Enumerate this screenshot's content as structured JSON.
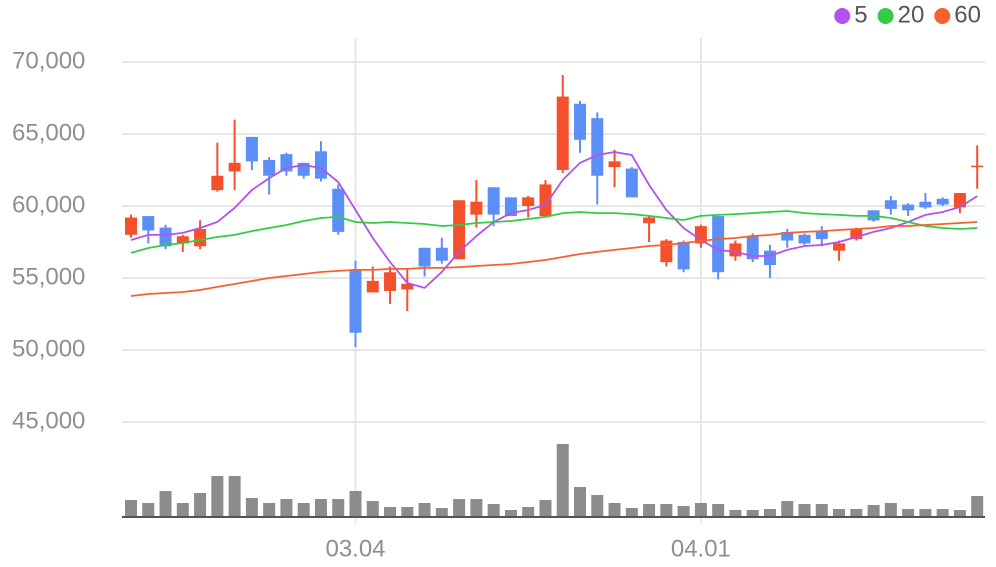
{
  "chart_data": {
    "type": "candlestick",
    "categories": [
      null,
      null,
      null,
      null,
      null,
      null,
      null,
      null,
      null,
      null,
      null,
      null,
      null,
      "03.04",
      null,
      null,
      null,
      null,
      null,
      null,
      null,
      null,
      null,
      null,
      null,
      null,
      null,
      null,
      null,
      null,
      null,
      null,
      null,
      "04.01",
      null,
      null,
      null,
      null,
      null,
      null,
      null,
      null,
      null,
      null,
      null,
      null,
      null,
      null,
      null,
      null
    ],
    "open": [
      58000,
      59300,
      58500,
      57400,
      57200,
      61100,
      62400,
      64800,
      63200,
      63600,
      63000,
      63800,
      61200,
      55600,
      54000,
      54100,
      54200,
      57100,
      57100,
      56300,
      59400,
      61300,
      60600,
      60000,
      59300,
      62500,
      67100,
      66100,
      62700,
      62600,
      58800,
      56100,
      57500,
      57400,
      59300,
      56500,
      57900,
      56900,
      58200,
      58000,
      58300,
      56900,
      57700,
      59700,
      60400,
      60100,
      60300,
      60500,
      59900,
      62700
    ],
    "high": [
      59400,
      59300,
      58700,
      58000,
      59000,
      64400,
      66000,
      64800,
      63400,
      63700,
      63000,
      64500,
      61500,
      56200,
      55800,
      55800,
      55700,
      57100,
      57800,
      60400,
      61800,
      61300,
      60600,
      60700,
      61800,
      69100,
      67300,
      66500,
      63900,
      62700,
      59300,
      57700,
      57600,
      58700,
      59300,
      57600,
      58100,
      57300,
      58400,
      58100,
      58600,
      57600,
      58500,
      59700,
      60700,
      60200,
      60900,
      60600,
      60900,
      64200
    ],
    "low": [
      57800,
      57400,
      57000,
      56800,
      57000,
      61000,
      61100,
      62500,
      60800,
      62100,
      61900,
      61700,
      58000,
      50200,
      54000,
      53200,
      52700,
      55100,
      56000,
      56300,
      58500,
      58600,
      59300,
      59200,
      59200,
      62300,
      63700,
      60100,
      61300,
      60600,
      57500,
      55800,
      55400,
      57100,
      54900,
      56200,
      56100,
      55000,
      57100,
      57300,
      57200,
      56200,
      57600,
      58900,
      59400,
      59300,
      59800,
      60000,
      59500,
      61200
    ],
    "close": [
      59200,
      58300,
      57200,
      57900,
      58400,
      62100,
      63000,
      63100,
      62100,
      62400,
      62100,
      61900,
      58200,
      51200,
      54800,
      55400,
      54600,
      55800,
      56200,
      60400,
      60300,
      59400,
      59300,
      60600,
      61500,
      67600,
      64600,
      62100,
      63100,
      60600,
      59200,
      57600,
      55600,
      58600,
      55400,
      57400,
      56300,
      55900,
      57600,
      57400,
      57700,
      57400,
      58400,
      59000,
      59800,
      59700,
      59900,
      60100,
      60900,
      62800
    ],
    "up_color": "#f4502c",
    "down_color": "#5b8ff7",
    "ma": [
      {
        "name": "5",
        "color": "#b352ee",
        "values": [
          57640,
          57990,
          57990,
          58130,
          58470,
          58890,
          59860,
          61110,
          61940,
          62640,
          62850,
          62640,
          61670,
          59720,
          57780,
          56110,
          54650,
          54310,
          55420,
          56810,
          57920,
          58890,
          59510,
          59720,
          60070,
          61810,
          62990,
          63540,
          63750,
          63540,
          61460,
          59720,
          58470,
          57640,
          56950,
          56810,
          56530,
          56530,
          56950,
          57220,
          57290,
          57500,
          57850,
          58200,
          58470,
          58890,
          59380,
          59580,
          59930,
          60690
        ]
      },
      {
        "name": "20",
        "color": "#33cc44",
        "values": [
          56740,
          57080,
          57290,
          57430,
          57640,
          57850,
          57990,
          58260,
          58470,
          58680,
          58960,
          59170,
          59240,
          58890,
          58820,
          58890,
          58820,
          58750,
          58610,
          58680,
          58820,
          58890,
          58960,
          59100,
          59240,
          59510,
          59580,
          59510,
          59510,
          59440,
          59310,
          59170,
          59030,
          59310,
          59380,
          59440,
          59510,
          59580,
          59650,
          59510,
          59440,
          59380,
          59310,
          59310,
          59170,
          58890,
          58610,
          58470,
          58400,
          58470
        ]
      },
      {
        "name": "60",
        "color": "#f5622e",
        "values": [
          53750,
          53890,
          53960,
          54030,
          54170,
          54380,
          54580,
          54790,
          55000,
          55140,
          55280,
          55420,
          55490,
          55560,
          55560,
          55630,
          55630,
          55700,
          55700,
          55760,
          55830,
          55900,
          55970,
          56110,
          56250,
          56460,
          56670,
          56810,
          56950,
          57080,
          57220,
          57290,
          57430,
          57570,
          57710,
          57780,
          57920,
          57990,
          58130,
          58200,
          58260,
          58330,
          58400,
          58470,
          58610,
          58610,
          58680,
          58750,
          58820,
          58890
        ]
      }
    ],
    "volume": {
      "color": "#8c8c8c",
      "ylim": [
        0,
        80
      ],
      "values": [
        17,
        14,
        26,
        14,
        24,
        41,
        41,
        19,
        14,
        18,
        14,
        18,
        18,
        26,
        16,
        10,
        10,
        14,
        9,
        18,
        18,
        13,
        7,
        10,
        17,
        73,
        30,
        22,
        14,
        9,
        13,
        13,
        11,
        14,
        13,
        7,
        7,
        8,
        16,
        13,
        13,
        8,
        8,
        12,
        14,
        8,
        8,
        8,
        7,
        21
      ]
    },
    "ylim": [
      44000,
      71000
    ],
    "yticks": [
      {
        "value": 70000,
        "label": "70,000"
      },
      {
        "value": 65000,
        "label": "65,000"
      },
      {
        "value": 60000,
        "label": "60,000"
      },
      {
        "value": 55000,
        "label": "55,000"
      },
      {
        "value": 50000,
        "label": "50,000"
      },
      {
        "value": 45000,
        "label": "45,000"
      }
    ],
    "grid": true,
    "legend": "top-right"
  }
}
